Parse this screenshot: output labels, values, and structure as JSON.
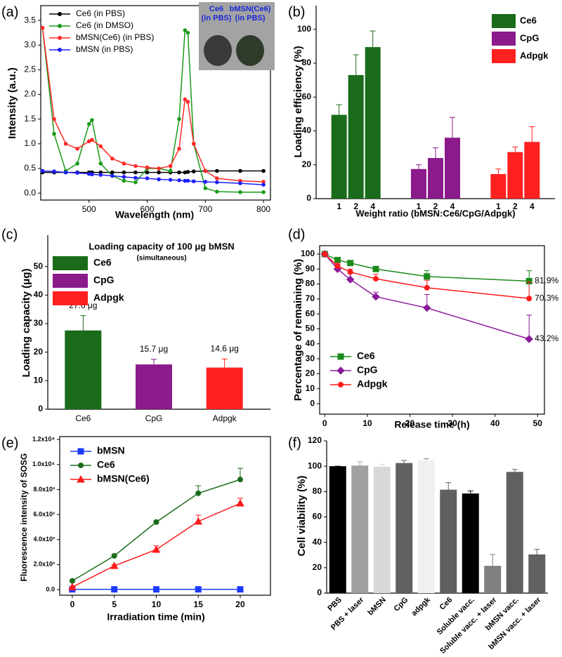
{
  "chart_data": [
    {
      "type": "line",
      "panel": "(a)",
      "x": [
        420,
        440,
        460,
        480,
        500,
        505,
        520,
        540,
        560,
        580,
        600,
        620,
        640,
        655,
        665,
        670,
        680,
        700,
        720,
        760,
        800
      ],
      "xlim": [
        417,
        812
      ],
      "xticks": [
        500,
        600,
        700,
        800
      ],
      "ylim": [
        -0.14,
        3.8
      ],
      "yticks": [
        {
          "value": 0,
          "label": "0.0"
        },
        0.5,
        {
          "value": 1,
          "label": "1.0"
        },
        1.5,
        {
          "value": 2,
          "label": "2.0"
        },
        2.5,
        {
          "value": 3,
          "label": "3.0"
        },
        3.5
      ],
      "x_label": "Wavelength (nm)",
      "y_label": "Intensity (a.u.)",
      "legend": true,
      "inset_labels": [
        [
          "Ce6",
          "(in PBS)"
        ],
        [
          "bMSN(Ce6)",
          "(in PBS)"
        ]
      ],
      "series": [
        {
          "name": "Ce6 (in PBS)",
          "color": "#000000",
          "marker": "circle",
          "values": [
            0.42,
            0.42,
            0.42,
            0.42,
            0.42,
            0.42,
            0.42,
            0.42,
            0.42,
            0.42,
            0.42,
            0.42,
            0.42,
            0.42,
            0.42,
            0.43,
            0.44,
            0.45,
            0.45,
            0.45,
            0.45
          ]
        },
        {
          "name": "Ce6 (in DMSO)",
          "color": "#1a9a1a",
          "marker": "circle",
          "values": [
            3.35,
            1.2,
            0.45,
            0.6,
            1.4,
            1.48,
            0.6,
            0.35,
            0.25,
            0.22,
            0.5,
            0.5,
            0.45,
            1.5,
            3.3,
            3.25,
            1.0,
            0.1,
            0.03,
            0.02,
            0.02
          ]
        },
        {
          "name": "bMSN(Ce6) (in PBS)",
          "color": "#ff2a2a",
          "marker": "circle",
          "values": [
            3.35,
            1.5,
            1.0,
            0.9,
            1.05,
            1.08,
            0.95,
            0.7,
            0.6,
            0.55,
            0.52,
            0.5,
            0.55,
            0.9,
            1.9,
            1.85,
            1.0,
            0.45,
            0.3,
            0.25,
            0.23
          ]
        },
        {
          "name": "bMSN (in PBS)",
          "color": "#1e1eff",
          "marker": "circle",
          "values": [
            0.45,
            0.44,
            0.42,
            0.41,
            0.39,
            0.38,
            0.37,
            0.35,
            0.33,
            0.31,
            0.3,
            0.28,
            0.27,
            0.26,
            0.25,
            0.25,
            0.24,
            0.23,
            0.22,
            0.2,
            0.17
          ]
        }
      ]
    },
    {
      "type": "bar",
      "panel": "(b)",
      "categories": [
        "1",
        "2",
        "4"
      ],
      "ylim": [
        0,
        114
      ],
      "yticks": [
        0,
        20,
        40,
        60,
        80,
        100
      ],
      "x_label": "Weight ratio (bMSN:Ce6/CpG/Adpgk)",
      "y_label": "Loading efficiency (%)",
      "legend": true,
      "series": [
        {
          "name": "Ce6",
          "color": "#1a6b1a",
          "values": [
            49.5,
            73,
            89.5
          ],
          "error": [
            6,
            12,
            9.5
          ]
        },
        {
          "name": "CpG",
          "color": "#8b1a8b",
          "values": [
            17.5,
            24,
            36
          ],
          "error": [
            2.5,
            6,
            12
          ]
        },
        {
          "name": "Adpgk",
          "color": "#ff2020",
          "values": [
            14.5,
            27.5,
            33.5
          ],
          "error": [
            3,
            3,
            9
          ]
        }
      ]
    },
    {
      "type": "bar",
      "panel": "(c)",
      "title": "Loading capacity of 100 μg bMSN",
      "subtitle": "(simultaneous)",
      "categories": [
        "Ce6",
        "CpG",
        "Adpgk"
      ],
      "values": [
        27.6,
        15.7,
        14.6
      ],
      "error": [
        5.2,
        1.8,
        3
      ],
      "value_labels": [
        "27.6 μg",
        "15.7 μg",
        "14.6 μg"
      ],
      "colors": [
        "#1a6b1a",
        "#8b1a8b",
        "#ff2020"
      ],
      "ylim": [
        0,
        61
      ],
      "yticks": [
        0,
        10,
        20,
        30,
        40,
        50
      ],
      "y_label": "Loading capacity (μg)",
      "legend": true
    },
    {
      "type": "line",
      "panel": "(d)",
      "x": [
        0,
        3,
        6,
        12,
        24,
        48
      ],
      "xlim": [
        -1.2,
        51.6
      ],
      "xticks": [
        0,
        10,
        20,
        30,
        40,
        50
      ],
      "ylim": [
        -7,
        105.6
      ],
      "yticks": [
        0,
        10,
        20,
        30,
        40,
        50,
        60,
        70,
        80,
        90,
        100
      ],
      "x_label": "Release time (h)",
      "y_label": "Percentage of remaining (%)",
      "legend": true,
      "series": [
        {
          "name": "Ce6",
          "color": "#1a8a1a",
          "marker": "square",
          "values": [
            100,
            96,
            94,
            90,
            85,
            81.9
          ],
          "error": [
            0,
            1.5,
            1,
            1.5,
            4,
            7
          ],
          "value_labels": [
            null,
            null,
            null,
            null,
            null,
            "81.9%"
          ]
        },
        {
          "name": "CpG",
          "color": "#8b1a9b",
          "marker": "diamond",
          "values": [
            100,
            90,
            83,
            71.5,
            64,
            43.2
          ],
          "error": [
            0,
            3,
            4,
            3,
            9,
            16
          ],
          "value_labels": [
            null,
            null,
            null,
            null,
            null,
            "43.2%"
          ]
        },
        {
          "name": "Adpgk",
          "color": "#ff1a1a",
          "marker": "circle",
          "values": [
            100,
            92,
            88,
            83.5,
            77.5,
            70.3
          ],
          "error": [
            0,
            2,
            2,
            3,
            5,
            11
          ],
          "value_labels": [
            null,
            null,
            null,
            null,
            null,
            "70.3%"
          ]
        }
      ]
    },
    {
      "type": "line",
      "panel": "(e)",
      "x": [
        0,
        5,
        10,
        15,
        20
      ],
      "xlim": [
        -1.5,
        23.6
      ],
      "xticks": [
        0,
        5,
        10,
        15,
        20
      ],
      "ylim": [
        -449,
        12230
      ],
      "yticks": [
        {
          "value": 0,
          "label": "0.0"
        },
        {
          "value": 2000,
          "label": "2.0x10³"
        },
        {
          "value": 4000,
          "label": "4.0x10³"
        },
        {
          "value": 6000,
          "label": "6.0x10³"
        },
        {
          "value": 8000,
          "label": "8.0x10³"
        },
        {
          "value": 10000,
          "label": "1.0x10⁴"
        },
        {
          "value": 12000,
          "label": "1.2x10⁴"
        }
      ],
      "x_label": "Irradiation time (min)",
      "y_label": "Fluorescence intensity of SOSG",
      "legend": true,
      "series": [
        {
          "name": "bMSN",
          "color": "#1a3aff",
          "marker": "square",
          "values": [
            20,
            20,
            20,
            20,
            20
          ]
        },
        {
          "name": "Ce6",
          "color": "#1a6b1a",
          "marker": "circle",
          "values": [
            700,
            2700,
            5400,
            7700,
            8800
          ],
          "error": [
            0,
            100,
            100,
            600,
            900
          ]
        },
        {
          "name": "bMSN(Ce6)",
          "color": "#ff1a1a",
          "marker": "triangle",
          "values": [
            200,
            1900,
            3200,
            5450,
            6900
          ],
          "error": [
            0,
            100,
            300,
            500,
            400
          ]
        }
      ]
    },
    {
      "type": "bar",
      "panel": "(f)",
      "categories": [
        "PBS",
        "PBS + laser",
        "bMSN",
        "CpG",
        "adpgk",
        "Ce6",
        "Soluble vacc.",
        "Soluble vacc. + laser",
        "bMSN vacc.",
        "bMSN vacc. + laser"
      ],
      "values": [
        100,
        100.5,
        99.5,
        102.5,
        105,
        81.5,
        78.5,
        21.5,
        95.5,
        30.5
      ],
      "error": [
        0,
        3,
        2,
        2,
        1,
        5.5,
        2,
        9,
        2,
        4
      ],
      "colors": [
        "#000000",
        "#a0a0a0",
        "#d8d8d8",
        "#606060",
        "#f0f0f0",
        "#606060",
        "#000000",
        "#808080",
        "#606060",
        "#606060"
      ],
      "ylim": [
        0,
        120
      ],
      "yticks": [
        0,
        20,
        40,
        60,
        80,
        100,
        120
      ],
      "y_label": "Cell viability (%)",
      "legend": false
    }
  ]
}
